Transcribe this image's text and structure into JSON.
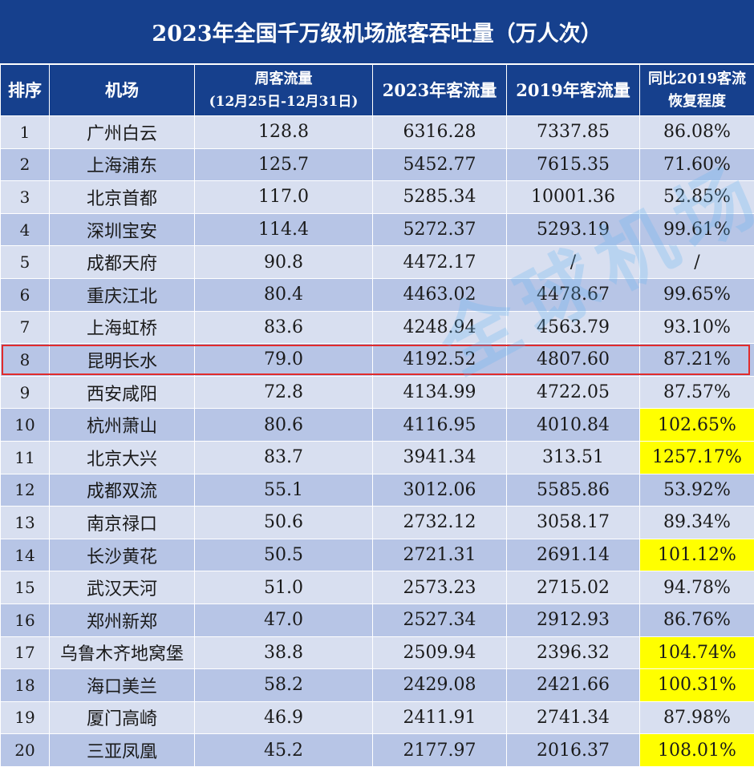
{
  "title": "2023年全国千万级机场旅客吞吐量（万人次）",
  "headers": {
    "rank": "排序",
    "airport": "机场",
    "weekly": "周客流量",
    "weekly_range": "(12月25日-12月31日)",
    "y2023": "2023年客流量",
    "y2019": "2019年客流量",
    "recovery_line1": "同比2019客流",
    "recovery_line2": "恢复程度"
  },
  "rows": [
    {
      "rank": "1",
      "airport": "广州白云",
      "weekly": "128.8",
      "y2023": "6316.28",
      "y2019": "7337.85",
      "recovery": "86.08%"
    },
    {
      "rank": "2",
      "airport": "上海浦东",
      "weekly": "125.7",
      "y2023": "5452.77",
      "y2019": "7615.35",
      "recovery": "71.60%"
    },
    {
      "rank": "3",
      "airport": "北京首都",
      "weekly": "117.0",
      "y2023": "5285.34",
      "y2019": "10001.36",
      "recovery": "52.85%"
    },
    {
      "rank": "4",
      "airport": "深圳宝安",
      "weekly": "114.4",
      "y2023": "5272.37",
      "y2019": "5293.19",
      "recovery": "99.61%"
    },
    {
      "rank": "5",
      "airport": "成都天府",
      "weekly": "90.8",
      "y2023": "4472.17",
      "y2019": "/",
      "recovery": "/"
    },
    {
      "rank": "6",
      "airport": "重庆江北",
      "weekly": "80.4",
      "y2023": "4463.02",
      "y2019": "4478.67",
      "recovery": "99.65%"
    },
    {
      "rank": "7",
      "airport": "上海虹桥",
      "weekly": "83.6",
      "y2023": "4248.94",
      "y2019": "4563.79",
      "recovery": "93.10%"
    },
    {
      "rank": "8",
      "airport": "昆明长水",
      "weekly": "79.0",
      "y2023": "4192.52",
      "y2019": "4807.60",
      "recovery": "87.21%"
    },
    {
      "rank": "9",
      "airport": "西安咸阳",
      "weekly": "72.8",
      "y2023": "4134.99",
      "y2019": "4722.05",
      "recovery": "87.57%"
    },
    {
      "rank": "10",
      "airport": "杭州萧山",
      "weekly": "80.6",
      "y2023": "4116.95",
      "y2019": "4010.84",
      "recovery": "102.65%"
    },
    {
      "rank": "11",
      "airport": "北京大兴",
      "weekly": "83.7",
      "y2023": "3941.34",
      "y2019": "313.51",
      "recovery": "1257.17%"
    },
    {
      "rank": "12",
      "airport": "成都双流",
      "weekly": "55.1",
      "y2023": "3012.06",
      "y2019": "5585.86",
      "recovery": "53.92%"
    },
    {
      "rank": "13",
      "airport": "南京禄口",
      "weekly": "50.6",
      "y2023": "2732.12",
      "y2019": "3058.17",
      "recovery": "89.34%"
    },
    {
      "rank": "14",
      "airport": "长沙黄花",
      "weekly": "50.5",
      "y2023": "2721.31",
      "y2019": "2691.14",
      "recovery": "101.12%"
    },
    {
      "rank": "15",
      "airport": "武汉天河",
      "weekly": "51.0",
      "y2023": "2573.23",
      "y2019": "2715.02",
      "recovery": "94.78%"
    },
    {
      "rank": "16",
      "airport": "郑州新郑",
      "weekly": "47.0",
      "y2023": "2527.34",
      "y2019": "2912.93",
      "recovery": "86.76%"
    },
    {
      "rank": "17",
      "airport": "乌鲁木齐地窝堡",
      "weekly": "38.8",
      "y2023": "2509.94",
      "y2019": "2396.32",
      "recovery": "104.74%"
    },
    {
      "rank": "18",
      "airport": "海口美兰",
      "weekly": "58.2",
      "y2023": "2429.08",
      "y2019": "2421.66",
      "recovery": "100.31%"
    },
    {
      "rank": "19",
      "airport": "厦门高崎",
      "weekly": "46.9",
      "y2023": "2411.91",
      "y2019": "2741.34",
      "recovery": "87.98%"
    },
    {
      "rank": "20",
      "airport": "三亚凤凰",
      "weekly": "45.2",
      "y2023": "2177.97",
      "y2019": "2016.37",
      "recovery": "108.01%"
    }
  ],
  "watermark": "全球机场",
  "colors": {
    "header_bg": "#16408d",
    "row_light": "#d8dff0",
    "row_dark": "#b7c5e6",
    "highlight_cell": "#ffff00",
    "highlight_border": "#e12b2b"
  }
}
